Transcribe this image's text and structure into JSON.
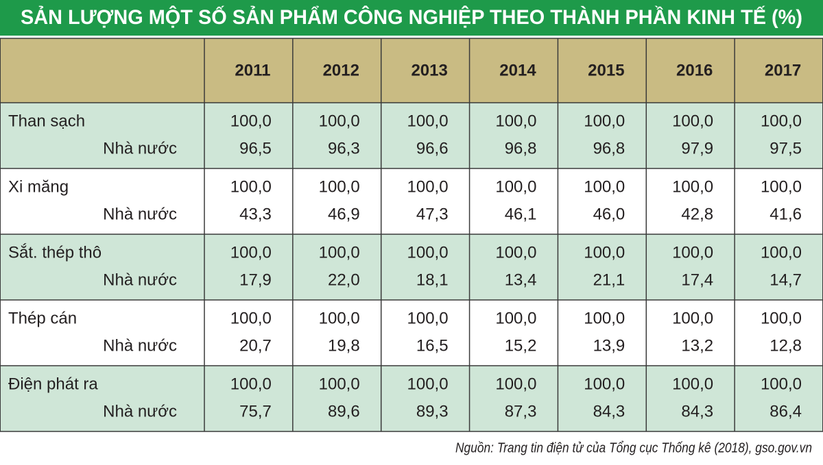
{
  "title": "SẢN LƯỢNG MỘT SỐ SẢN PHẨM CÔNG NGHIỆP THEO THÀNH PHẦN KINH TẾ (%)",
  "table": {
    "columns": [
      "2011",
      "2012",
      "2013",
      "2014",
      "2015",
      "2016",
      "2017"
    ],
    "rows": [
      {
        "label": "Than sạch",
        "sublabel": "Nhà nước",
        "total": [
          "100,0",
          "100,0",
          "100,0",
          "100,0",
          "100,0",
          "100,0",
          "100,0"
        ],
        "state": [
          "96,5",
          "96,3",
          "96,6",
          "96,8",
          "96,8",
          "97,9",
          "97,5"
        ]
      },
      {
        "label": "Xi măng",
        "sublabel": "Nhà nước",
        "total": [
          "100,0",
          "100,0",
          "100,0",
          "100,0",
          "100,0",
          "100,0",
          "100,0"
        ],
        "state": [
          "43,3",
          "46,9",
          "47,3",
          "46,1",
          "46,0",
          "42,8",
          "41,6"
        ]
      },
      {
        "label": "Sắt. thép thô",
        "sublabel": "Nhà nước",
        "total": [
          "100,0",
          "100,0",
          "100,0",
          "100,0",
          "100,0",
          "100,0",
          "100,0"
        ],
        "state": [
          "17,9",
          "22,0",
          "18,1",
          "13,4",
          "21,1",
          "17,4",
          "14,7"
        ]
      },
      {
        "label": "Thép cán",
        "sublabel": "Nhà nước",
        "total": [
          "100,0",
          "100,0",
          "100,0",
          "100,0",
          "100,0",
          "100,0",
          "100,0"
        ],
        "state": [
          "20,7",
          "19,8",
          "16,5",
          "15,2",
          "13,9",
          "13,2",
          "12,8"
        ]
      },
      {
        "label": "Điện phát ra",
        "sublabel": "Nhà nước",
        "total": [
          "100,0",
          "100,0",
          "100,0",
          "100,0",
          "100,0",
          "100,0",
          "100,0"
        ],
        "state": [
          "75,7",
          "89,6",
          "89,3",
          "87,3",
          "84,3",
          "84,3",
          "86,4"
        ]
      }
    ]
  },
  "source": "Nguồn: Trang tin điện tử của Tổng cục Thống kê (2018), gso.gov.vn"
}
